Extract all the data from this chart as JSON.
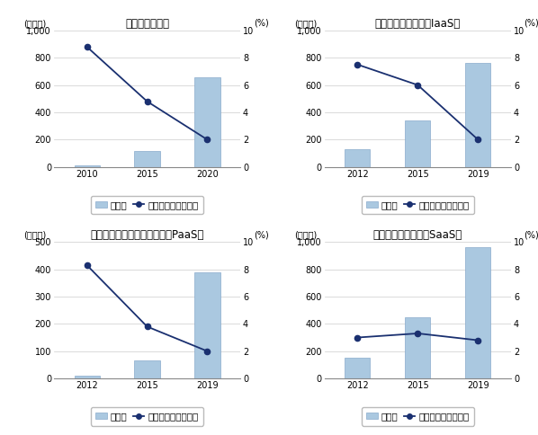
{
  "charts": [
    {
      "title": "定額制動画配信",
      "years": [
        2010,
        2015,
        2020
      ],
      "bar_values": [
        10,
        120,
        660
      ],
      "line_values": [
        8.8,
        4.8,
        2.0
      ],
      "ylim": [
        0,
        1000
      ],
      "yticks": [
        0,
        200,
        400,
        600,
        800,
        1000
      ],
      "ytick_labels": [
        "0",
        "200",
        "400",
        "600",
        "800",
        "1,000"
      ],
      "right_ylim": [
        0,
        10
      ],
      "right_yticks": [
        0,
        2,
        4,
        6,
        8,
        10
      ]
    },
    {
      "title": "クラウドインフラ（IaaS）",
      "years": [
        2012,
        2015,
        2019
      ],
      "bar_values": [
        130,
        340,
        760
      ],
      "line_values": [
        7.5,
        6.0,
        2.0
      ],
      "ylim": [
        0,
        1000
      ],
      "yticks": [
        0,
        200,
        400,
        600,
        800,
        1000
      ],
      "ytick_labels": [
        "0",
        "200",
        "400",
        "600",
        "800",
        "1,000"
      ],
      "right_ylim": [
        0,
        10
      ],
      "right_yticks": [
        0,
        2,
        4,
        6,
        8,
        10
      ]
    },
    {
      "title": "クラウドプラットフォーム（PaaS）",
      "years": [
        2012,
        2015,
        2019
      ],
      "bar_values": [
        10,
        65,
        390
      ],
      "line_values": [
        8.3,
        3.8,
        2.0
      ],
      "ylim": [
        0,
        500
      ],
      "yticks": [
        0,
        100,
        200,
        300,
        400,
        500
      ],
      "ytick_labels": [
        "0",
        "100",
        "200",
        "300",
        "400",
        "500"
      ],
      "right_ylim": [
        0,
        10
      ],
      "right_yticks": [
        0,
        2,
        4,
        6,
        8,
        10
      ]
    },
    {
      "title": "クラウドサービス（SaaS）",
      "years": [
        2012,
        2015,
        2019
      ],
      "bar_values": [
        150,
        450,
        960
      ],
      "line_values": [
        3.0,
        3.3,
        2.8
      ],
      "ylim": [
        0,
        1000
      ],
      "yticks": [
        0,
        200,
        400,
        600,
        800,
        1000
      ],
      "ytick_labels": [
        "0",
        "200",
        "400",
        "600",
        "800",
        "1,000"
      ],
      "right_ylim": [
        0,
        10
      ],
      "right_yticks": [
        0,
        2,
        4,
        6,
        8,
        10
      ]
    }
  ],
  "bar_color": "#aac8e0",
  "bar_edge_color": "#88aacc",
  "line_color": "#1a3070",
  "marker_color": "#1a3070",
  "left_ylabel": "(億ドル)",
  "right_ylabel": "(%)",
  "legend_bar_label": "売上高",
  "legend_line_label": "日本シェア（右軸）",
  "background_color": "#ffffff",
  "grid_color": "#cccccc",
  "title_fontsize": 8.5,
  "tick_fontsize": 7,
  "label_fontsize": 7,
  "legend_fontsize": 7.5
}
